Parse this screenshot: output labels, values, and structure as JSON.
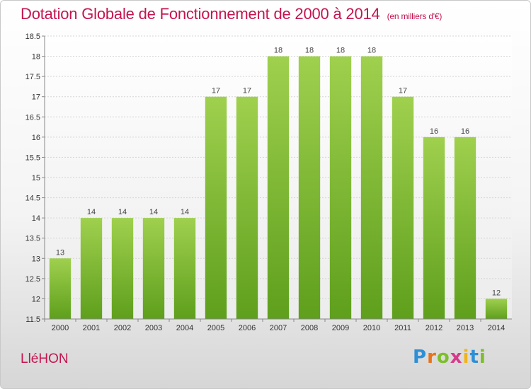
{
  "header": {
    "title": "Dotation Globale de Fonctionnement de 2000 à 2014",
    "unit": "(en milliers d'€)"
  },
  "footer": {
    "commune": "LléHON",
    "logo_letters": [
      "P",
      "r",
      "o",
      "x",
      "i",
      "t",
      "i"
    ],
    "logo_colors": [
      "#2d8fd6",
      "#e8731a",
      "#7cbf2a",
      "#d63a8a",
      "#f2b318",
      "#2d8fd6",
      "#7cbf2a"
    ]
  },
  "chart_data": {
    "type": "bar",
    "title": "Dotation Globale de Fonctionnement de 2000 à 2014",
    "xlabel": "",
    "ylabel": "",
    "categories": [
      "2000",
      "2001",
      "2002",
      "2003",
      "2004",
      "2005",
      "2006",
      "2007",
      "2008",
      "2009",
      "2010",
      "2011",
      "2012",
      "2013",
      "2014"
    ],
    "values": [
      13,
      14,
      14,
      14,
      14,
      17,
      17,
      18,
      18,
      18,
      18,
      17,
      16,
      16,
      12
    ],
    "value_labels": [
      "13",
      "14",
      "14",
      "14",
      "14",
      "17",
      "17",
      "18",
      "18",
      "18",
      "18",
      "17",
      "16",
      "16",
      "12"
    ],
    "ylim": [
      11.5,
      18.5
    ],
    "yticks": [
      11.5,
      12,
      12.5,
      13,
      13.5,
      14,
      14.5,
      15,
      15.5,
      16,
      16.5,
      17,
      17.5,
      18,
      18.5
    ],
    "ytick_labels": [
      "11.5",
      "12",
      "12.5",
      "13",
      "13.5",
      "14",
      "14.5",
      "15",
      "15.5",
      "16",
      "16.5",
      "17",
      "17.5",
      "18",
      "18.5"
    ],
    "grid": true,
    "bar_color_top": "#9fd04e",
    "bar_color_bottom": "#5e9f1c"
  }
}
